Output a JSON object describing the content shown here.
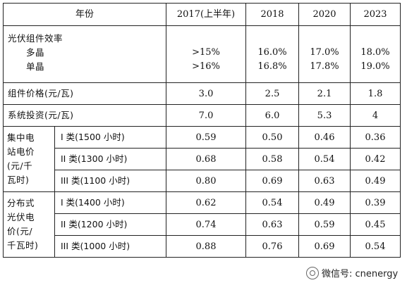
{
  "header": {
    "year_label": "年份",
    "years": [
      "2017(上半年)",
      "2018",
      "2020",
      "2023"
    ]
  },
  "efficiency": {
    "label": "光伏组件效率",
    "multi_label": "多晶",
    "mono_label": "单晶",
    "multi": [
      ">15%",
      "16.0%",
      "17.0%",
      "18.0%"
    ],
    "mono": [
      ">16%",
      "16.8%",
      "17.8%",
      "19.0%"
    ]
  },
  "module_price": {
    "label": "组件价格(元/瓦)",
    "values": [
      "3.0",
      "2.5",
      "2.1",
      "1.8"
    ]
  },
  "system_invest": {
    "label": "系统投资(元/瓦)",
    "values": [
      "7.0",
      "6.0",
      "5.3",
      "4"
    ]
  },
  "central": {
    "label_lines": [
      "集中电",
      "站电价",
      "(元/千",
      "瓦时)"
    ],
    "rows": [
      {
        "label": "I 类(1500 小时)",
        "values": [
          "0.59",
          "0.50",
          "0.46",
          "0.36"
        ]
      },
      {
        "label": "II 类(1300 小时)",
        "values": [
          "0.68",
          "0.58",
          "0.54",
          "0.42"
        ]
      },
      {
        "label": "III 类(1100 小时)",
        "values": [
          "0.80",
          "0.69",
          "0.63",
          "0.49"
        ]
      }
    ]
  },
  "distributed": {
    "label_lines": [
      "分布式",
      "光伏电",
      "价(元/",
      "千瓦时)"
    ],
    "rows": [
      {
        "label": "I 类(1400 小时)",
        "values": [
          "0.62",
          "0.54",
          "0.49",
          "0.39"
        ]
      },
      {
        "label": "II 类(1200 小时)",
        "values": [
          "0.74",
          "0.63",
          "0.59",
          "0.45"
        ]
      },
      {
        "label": "III 类(1000 小时)",
        "values": [
          "0.88",
          "0.76",
          "0.69",
          "0.54"
        ]
      }
    ]
  },
  "watermark": {
    "text": "微信号: cnenergy"
  }
}
